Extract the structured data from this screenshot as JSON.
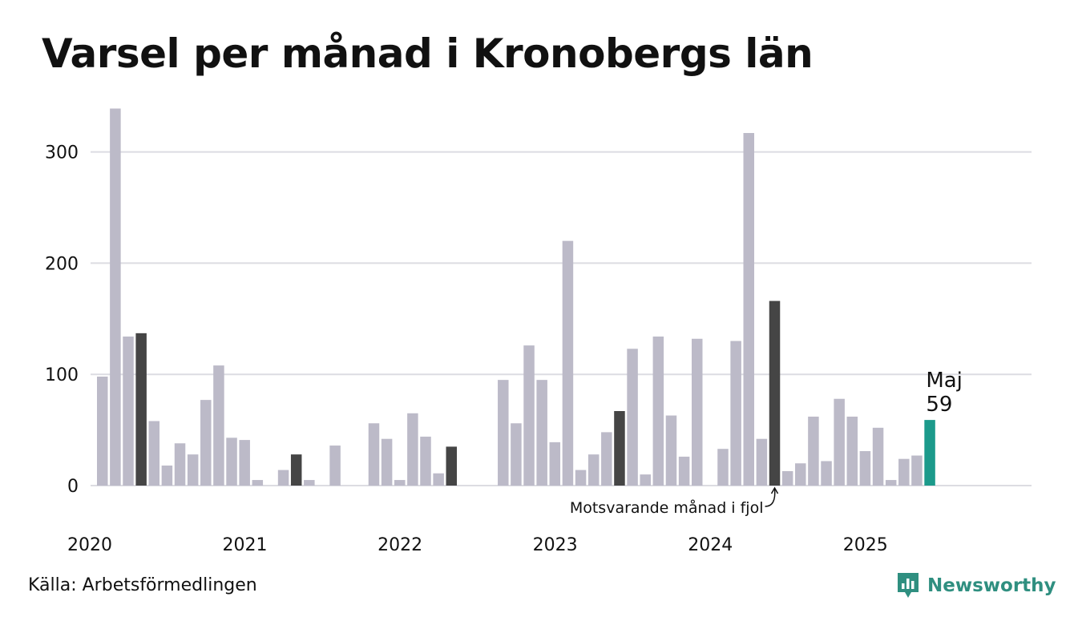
{
  "title": "Varsel per månad i Kronobergs län",
  "source": "Källa: Arbetsförmedlingen",
  "brand": {
    "name": "Newsworthy",
    "icon": "newsworthy-logo-icon",
    "color": "#2f8f80"
  },
  "colors": {
    "default": "#bcbac8",
    "same_month_last_year": "#454545",
    "current": "#1c9a8b",
    "grid": "#dcdce2"
  },
  "chart_data": {
    "type": "bar",
    "title": "Varsel per månad i Kronobergs län",
    "ylim": [
      0,
      340
    ],
    "yticks": [
      0,
      100,
      200,
      300
    ],
    "x_tick_labels": [
      "2020",
      "2021",
      "2022",
      "2023",
      "2024",
      "2025"
    ],
    "grid": true,
    "series": [
      {
        "values": [
          98,
          339,
          134,
          137,
          58,
          18,
          38,
          28,
          77,
          108,
          43,
          41,
          5,
          0,
          14,
          28,
          5,
          0,
          36,
          0,
          0,
          56,
          42,
          5,
          65,
          44,
          11,
          35,
          0,
          0,
          0,
          95,
          56,
          126,
          95,
          39,
          220,
          14,
          28,
          48,
          67,
          123,
          10,
          134,
          63,
          26,
          132,
          0,
          33,
          130,
          317,
          42,
          166,
          13,
          20,
          62,
          22,
          78,
          62,
          31,
          52,
          5,
          24,
          27,
          59
        ]
      }
    ],
    "highlight_last_year_indices": [
      3,
      15,
      27,
      40,
      52
    ],
    "current_index": 64,
    "current_label": {
      "month": "Maj",
      "value": "59"
    },
    "annotation": "Motsvarande månad i fjol"
  }
}
